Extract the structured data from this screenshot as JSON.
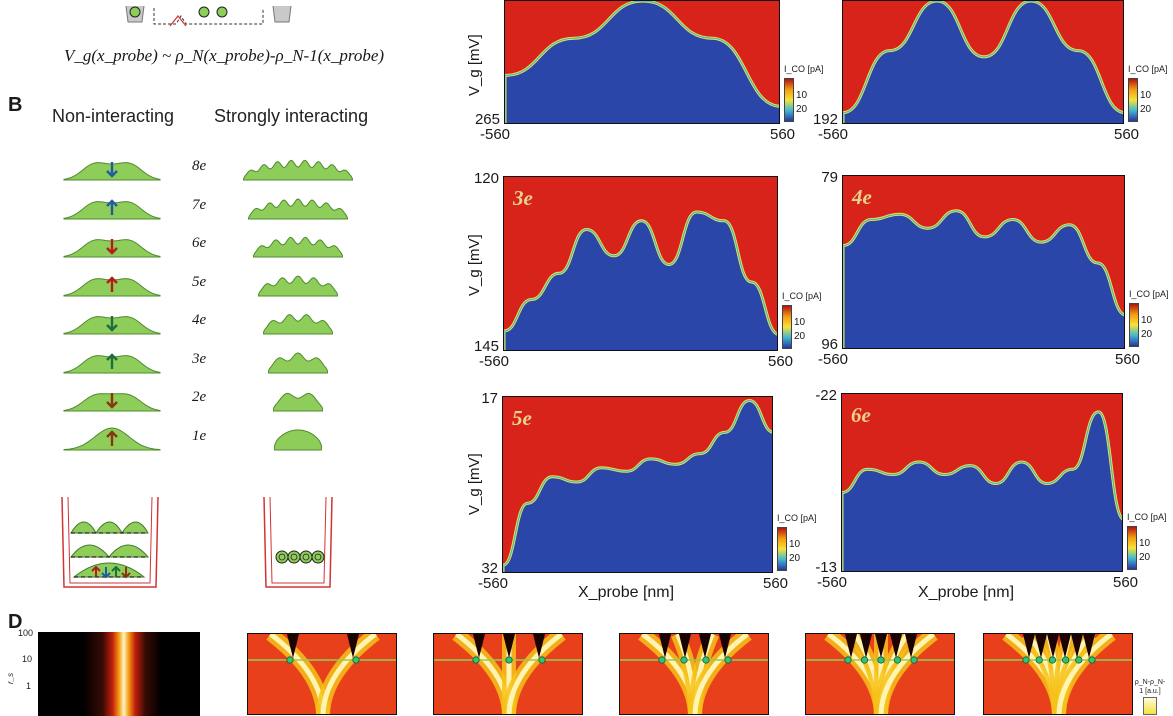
{
  "panel_a": {
    "formula": "V_g(x_probe) ~ ρ_N(x_probe)-ρ_N-1(x_probe)"
  },
  "panel_b": {
    "letter": "B",
    "col_left": "Non-interacting",
    "col_right": "Strongly interacting",
    "rows": [
      {
        "n": "8e",
        "arrow": "down",
        "color": "#1f5d9e"
      },
      {
        "n": "7e",
        "arrow": "up",
        "color": "#1f5d9e"
      },
      {
        "n": "6e",
        "arrow": "down",
        "color": "#b51b1b"
      },
      {
        "n": "5e",
        "arrow": "up",
        "color": "#b51b1b"
      },
      {
        "n": "4e",
        "arrow": "down",
        "color": "#1e6d3e"
      },
      {
        "n": "3e",
        "arrow": "up",
        "color": "#1e6d3e"
      },
      {
        "n": "2e",
        "arrow": "down",
        "color": "#8a3412"
      },
      {
        "n": "1e",
        "arrow": "up",
        "color": "#8a3412"
      }
    ]
  },
  "panel_c": {
    "ylabel": "V_g [mV]",
    "xlabel": "X_probe [nm]",
    "colorbar": {
      "title": "I_CO [pA]",
      "ticks": [
        "10",
        "20"
      ]
    },
    "maps": [
      {
        "label": "",
        "ytop": "",
        "ybottom": "265",
        "xmin": "-560",
        "xmax": "560"
      },
      {
        "label": "",
        "ytop": "",
        "ybottom": "192",
        "xmin": "-560",
        "xmax": "560"
      },
      {
        "label": "3e",
        "ytop": "120",
        "ybottom": "145",
        "xmin": "-560",
        "xmax": "560"
      },
      {
        "label": "4e",
        "ytop": "79",
        "ybottom": "96",
        "xmin": "-560",
        "xmax": "560"
      },
      {
        "label": "5e",
        "ytop": "17",
        "ybottom": "32",
        "xmin": "-560",
        "xmax": "560"
      },
      {
        "label": "6e",
        "ytop": "-22",
        "ybottom": "-13",
        "xmin": "-560",
        "xmax": "560"
      }
    ]
  },
  "panel_d": {
    "letter": "D",
    "y_ticks": [
      "100",
      "10",
      "1"
    ],
    "ylabel": "r_s",
    "colorbar_title": "ρ_N-ρ_N-1 [a.u.]"
  },
  "colors": {
    "high": "#d8231b",
    "low": "#2a46a8",
    "green_profile": "#8fcd5a",
    "well": "#d23434"
  }
}
